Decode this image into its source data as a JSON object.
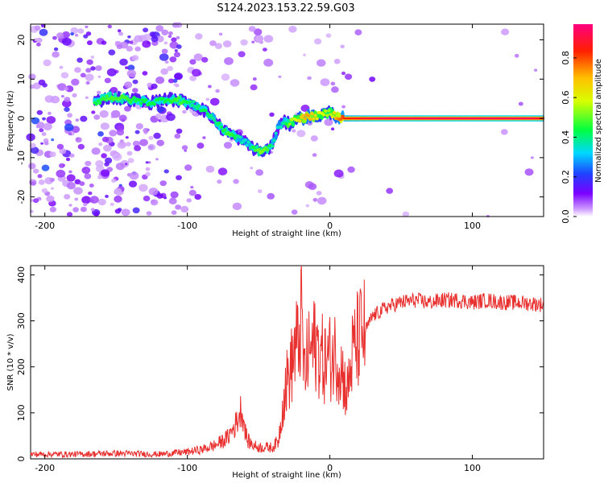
{
  "title": "S124.2023.153.22.59.G03",
  "chart_data": [
    {
      "type": "heatmap",
      "xlabel": "Height of straight line (km)",
      "ylabel": "Frequency (Hz)",
      "xlim": [
        -210,
        150
      ],
      "ylim": [
        -25,
        24
      ],
      "xticks": [
        -200,
        -100,
        0,
        100
      ],
      "yticks": [
        -20,
        -10,
        0,
        10,
        20
      ],
      "grid": false,
      "colorbar": {
        "label": "Normalized spectral amplitude",
        "range": [
          0,
          0.97
        ],
        "ticks": [
          0.0,
          0.2,
          0.4,
          0.6,
          0.8
        ]
      },
      "ridge": {
        "x": [
          -165,
          -155,
          -145,
          -135,
          -125,
          -115,
          -105,
          -95,
          -88,
          -82,
          -76,
          -70,
          -64,
          -58,
          -52,
          -48,
          -44,
          -40,
          -36,
          -32,
          -28,
          -24,
          -20,
          -15,
          -10,
          -5,
          0,
          5,
          10,
          20,
          40,
          60,
          80,
          100,
          120,
          140,
          150
        ],
        "y": [
          4,
          5.5,
          5,
          4.5,
          4,
          5,
          4.5,
          3.5,
          2,
          0,
          -2.5,
          -4,
          -5,
          -6.5,
          -8,
          -8.5,
          -8,
          -6.5,
          -2,
          -1,
          -1.5,
          0,
          0,
          0.5,
          0.5,
          1,
          1.5,
          0.5,
          0,
          0,
          0,
          0,
          0,
          0,
          0,
          0,
          0
        ],
        "amplitude": [
          0.45,
          0.5,
          0.5,
          0.45,
          0.45,
          0.45,
          0.5,
          0.4,
          0.45,
          0.4,
          0.45,
          0.5,
          0.4,
          0.35,
          0.5,
          0.55,
          0.5,
          0.4,
          0.35,
          0.4,
          0.55,
          0.6,
          0.7,
          0.75,
          0.65,
          0.6,
          0.55,
          0.75,
          0.85,
          0.9,
          0.95,
          0.95,
          0.95,
          0.95,
          0.95,
          0.95,
          0.9
        ]
      }
    },
    {
      "type": "line",
      "xlabel": "Height of straight line (km)",
      "ylabel": "SNR (10 * v/v)",
      "xlim": [
        -210,
        150
      ],
      "ylim": [
        0,
        420
      ],
      "xticks": [
        -200,
        -100,
        0,
        100
      ],
      "yticks": [
        0,
        100,
        200,
        300,
        400
      ],
      "grid": false,
      "series": [
        {
          "color": "#e8302f",
          "x": [
            -210,
            -180,
            -150,
            -120,
            -100,
            -90,
            -80,
            -72,
            -66,
            -62,
            -58,
            -54,
            -50,
            -45,
            -40,
            -36,
            -33,
            -30,
            -27,
            -24,
            -22,
            -20,
            -18,
            -15,
            -12,
            -10,
            -7,
            -4,
            0,
            4,
            8,
            12,
            16,
            20,
            25,
            30,
            40,
            50,
            60,
            70,
            80,
            90,
            100,
            110,
            120,
            130,
            140,
            150
          ],
          "y": [
            10,
            10,
            12,
            10,
            15,
            20,
            30,
            45,
            75,
            110,
            40,
            30,
            25,
            25,
            25,
            40,
            120,
            170,
            200,
            250,
            240,
            330,
            180,
            230,
            240,
            250,
            230,
            210,
            220,
            230,
            200,
            140,
            230,
            260,
            280,
            310,
            330,
            340,
            345,
            340,
            345,
            345,
            340,
            345,
            340,
            340,
            338,
            335
          ]
        }
      ]
    }
  ]
}
